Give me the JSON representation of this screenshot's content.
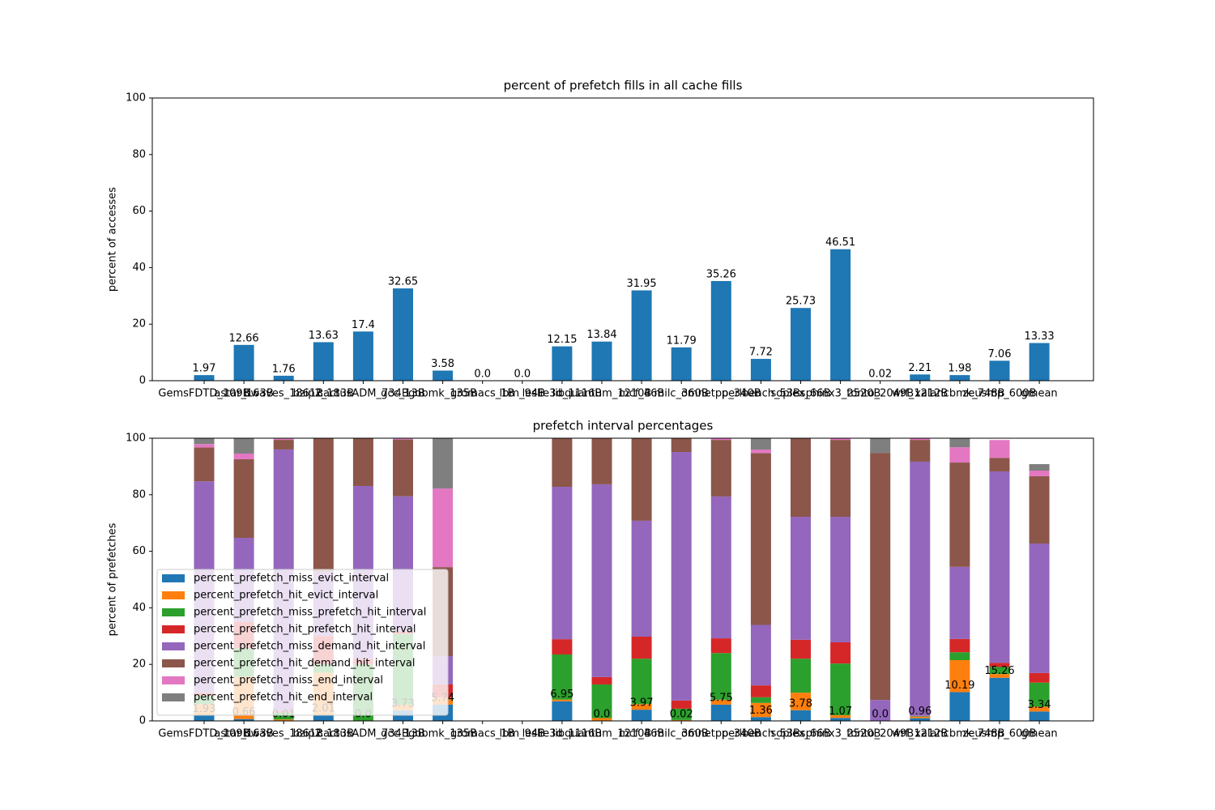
{
  "chart_data": [
    {
      "type": "bar",
      "title": "percent of prefetch fills in all cache fills",
      "ylabel": "percent of accesses",
      "categories": [
        "GemsFDTD_109B",
        "astar_163B",
        "bwaves_1861B",
        "bzip2_183B",
        "cactusADM_734B",
        "gcc_13B",
        "gobmk_135B",
        "gromacs_1B",
        "lbm_94B",
        "leslie3d_1116B",
        "libquantum_1210B",
        "mcf_46B",
        "milc_360B",
        "omnetpp_340B",
        "perlbench_53B",
        "soplex_66B",
        "sphinx3_2520B",
        "tonto_2049B",
        "wrf_1212B",
        "xalancbmk_748B",
        "zeusmp_600B",
        "gmean"
      ],
      "values": [
        1.97,
        12.66,
        1.76,
        13.63,
        17.4,
        32.65,
        3.58,
        0,
        0,
        12.15,
        13.84,
        31.95,
        11.79,
        35.26,
        7.72,
        25.73,
        46.51,
        0.02,
        2.21,
        1.98,
        7.06,
        13.33
      ],
      "value_labels": [
        "1.97",
        "12.66",
        "1.76",
        "13.63",
        "17.4",
        "32.65",
        "3.58",
        "0.0",
        "0.0",
        "12.15",
        "13.84",
        "31.95",
        "11.79",
        "35.26",
        "7.72",
        "25.73",
        "46.51",
        "0.02",
        "2.21",
        "1.98",
        "7.06",
        "13.33"
      ],
      "color": "#1f77b4",
      "ylim": [
        0,
        100
      ],
      "yticks": [
        0,
        20,
        40,
        60,
        80,
        100
      ]
    },
    {
      "type": "stacked_bar",
      "title": "prefetch interval percentages",
      "ylabel": "percent of prefetches",
      "categories": [
        "GemsFDTD_109B",
        "astar_163B",
        "bwaves_1861B",
        "bzip2_183B",
        "cactusADM_734B",
        "gcc_13B",
        "gobmk_135B",
        "gromacs_1B",
        "lbm_94B",
        "leslie3d_1116B",
        "libquantum_1210B",
        "mcf_46B",
        "milc_360B",
        "omnetpp_340B",
        "perlbench_53B",
        "soplex_66B",
        "sphinx3_2520B",
        "tonto_2049B",
        "wrf_1212B",
        "xalancbmk_748B",
        "zeusmp_600B",
        "gmean"
      ],
      "series": [
        {
          "name": "percent_prefetch_miss_evict_interval",
          "color": "#1f77b4",
          "values": [
            1.93,
            0.66,
            0.01,
            2.01,
            0.0,
            3.73,
            5.74,
            null,
            null,
            6.95,
            0.0,
            3.97,
            0.02,
            5.75,
            1.36,
            3.78,
            1.07,
            0.0,
            0.96,
            10.19,
            15.26,
            3.34
          ],
          "value_labels": [
            "1.93",
            "0.66",
            "0.01",
            "2.01",
            "0.0",
            "3.73",
            "5.74",
            null,
            null,
            "6.95",
            "0.0",
            "3.97",
            "0.02",
            "5.75",
            "1.36",
            "3.78",
            "1.07",
            "0.0",
            "0.96",
            "10.19",
            "15.26",
            "3.34"
          ]
        },
        {
          "name": "percent_prefetch_hit_evict_interval",
          "color": "#ff7f0e",
          "values": [
            4,
            15,
            0.5,
            15,
            0,
            2,
            2.5,
            null,
            null,
            0.6,
            1,
            2,
            0.3,
            1.75,
            5,
            6.22,
            0.93,
            0,
            0.5,
            11.3,
            1.3,
            1.7
          ]
        },
        {
          "name": "percent_prefetch_miss_prefetch_hit_interval",
          "color": "#2ca02c",
          "values": [
            3,
            10,
            2.5,
            3,
            20,
            25,
            0,
            null,
            null,
            15.95,
            11.9,
            16.03,
            4,
            16.5,
            2,
            12,
            18.3,
            0,
            0.2,
            2.8,
            2.5,
            8.5
          ]
        },
        {
          "name": "percent_prefetch_hit_prefetch_hit_interval",
          "color": "#d62728",
          "values": [
            1,
            9.3,
            0.5,
            10,
            2,
            1,
            4.66,
            null,
            null,
            5.4,
            2.6,
            7.8,
            2.9,
            5.2,
            4.2,
            6.7,
            7.5,
            0,
            0.1,
            4.7,
            1.5,
            3.4
          ]
        },
        {
          "name": "percent_prefetch_miss_demand_hit_interval",
          "color": "#9467bd",
          "values": [
            74.8,
            29.8,
            92.5,
            22.7,
            61.1,
            47.7,
            10,
            null,
            null,
            53.9,
            68.2,
            41,
            87.9,
            50.2,
            21.4,
            43.5,
            44.4,
            7.4,
            89.94,
            25.5,
            67.7,
            45.8
          ]
        },
        {
          "name": "percent_prefetch_hit_demand_hit_interval",
          "color": "#8c564b",
          "values": [
            12,
            27.8,
            3.4,
            47.3,
            16.9,
            20.1,
            31.5,
            null,
            null,
            17.2,
            16.3,
            29.2,
            4.88,
            20,
            60.8,
            27.8,
            27.2,
            87.4,
            7.7,
            36.9,
            4.8,
            23.8
          ]
        },
        {
          "name": "percent_prefetch_miss_end_interval",
          "color": "#e377c2",
          "values": [
            1.2,
            2,
            0.4,
            0,
            0,
            0.3,
            27.8,
            null,
            null,
            0,
            0,
            0,
            0,
            0.6,
            1.2,
            0,
            0.6,
            0,
            0.6,
            5.4,
            6.3,
            2
          ]
        },
        {
          "name": "percent_prefetch_hit_end_interval",
          "color": "#7f7f7f",
          "values": [
            2,
            5.44,
            0.19,
            0,
            0,
            0.17,
            17.8,
            null,
            null,
            0,
            0,
            0,
            0,
            0,
            4,
            0,
            0,
            5.2,
            0,
            3.2,
            0,
            2.3
          ]
        }
      ],
      "ylim": [
        0,
        100
      ],
      "yticks": [
        0,
        20,
        40,
        60,
        80,
        100
      ],
      "legend": "lower left"
    }
  ]
}
